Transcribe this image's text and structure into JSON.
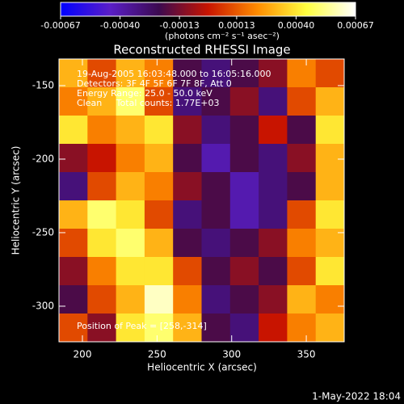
{
  "chart_data": {
    "type": "heatmap",
    "title": "Reconstructed RHESSI Image",
    "annotations": [
      "19-Aug-2005 16:03:48.000 to 16:05:16.000",
      "Detectors: 3F 4F 5F 6F 7F 8F, Att 0",
      "Energy Range: 25.0 - 50.0 keV",
      "Clean     Total counts: 1.77E+03"
    ],
    "peak_label": "Position of Peak = [258,-314]",
    "footer": "1-May-2022 18:04",
    "xlabel": "Heliocentric X (arcsec)",
    "ylabel": "Heliocentric Y (arcsec)",
    "xlim": [
      184.3,
      375.4
    ],
    "ylim": [
      -324.2,
      -131.9
    ],
    "xticks": [
      200,
      250,
      300,
      350
    ],
    "yticks": [
      -150,
      -200,
      -250,
      -300
    ],
    "colorbar_label": "(photons cm⁻² s⁻¹ asec⁻²)",
    "clim": [
      -0.00067,
      0.00067
    ],
    "cticks": [
      {
        "value": -0.00067,
        "label": "-0.00067"
      },
      {
        "value": -0.0004,
        "label": "-0.00040"
      },
      {
        "value": -0.00013,
        "label": "-0.00013"
      },
      {
        "value": 0.00013,
        "label": "0.00013"
      },
      {
        "value": 0.0004,
        "label": "0.00040"
      },
      {
        "value": 0.00067,
        "label": "0.00067"
      }
    ],
    "colorscale": [
      "#0000ff",
      "#5a1ec8",
      "#3c0a50",
      "#c81400",
      "#ff8c00",
      "#ffff40",
      "#ffffff"
    ],
    "z": [
      [
        0.0003,
        0.0001,
        0.0003,
        0.0002,
        -0.0002,
        -0.0003,
        -0.0002,
        -0.0001,
        0.0002,
        0.0001
      ],
      [
        0.0002,
        0.0003,
        0.0005,
        0.0001,
        -0.0003,
        -0.0002,
        -0.0001,
        -0.0003,
        0.0001,
        0.0003
      ],
      [
        0.0004,
        0.0002,
        0.0003,
        0.0004,
        -0.0001,
        -0.0003,
        -0.0002,
        0,
        -0.0002,
        0.0004
      ],
      [
        -0.0001,
        0,
        0.0002,
        0.0003,
        -0.0002,
        -0.0004,
        -0.0002,
        -0.0003,
        -0.0001,
        0.0003
      ],
      [
        -0.0003,
        0.0001,
        0.0003,
        0.0002,
        -0.0001,
        -0.0002,
        -0.0004,
        -0.0003,
        -0.0002,
        0.0003
      ],
      [
        0.0003,
        0.0005,
        0.0004,
        0.0001,
        -0.0003,
        -0.0002,
        -0.0004,
        -0.0003,
        0.0001,
        0.0004
      ],
      [
        0.0001,
        0.0004,
        0.0005,
        0.0003,
        -0.0002,
        -0.0003,
        -0.0002,
        -0.0001,
        0.0002,
        0.0003
      ],
      [
        -0.0001,
        0.0002,
        0.0004,
        0.0004,
        0.0001,
        -0.0002,
        -0.0001,
        -0.0002,
        0.0001,
        0.0004
      ],
      [
        -0.0002,
        0.0001,
        0.0003,
        0.0006,
        0.0002,
        -0.0003,
        -0.0002,
        -0.0001,
        0.0003,
        0.0002
      ],
      [
        0.0001,
        -0.0001,
        0.0004,
        0.0005,
        0.0003,
        -0.0002,
        -0.0003,
        0,
        0.0002,
        0.0003
      ]
    ]
  }
}
